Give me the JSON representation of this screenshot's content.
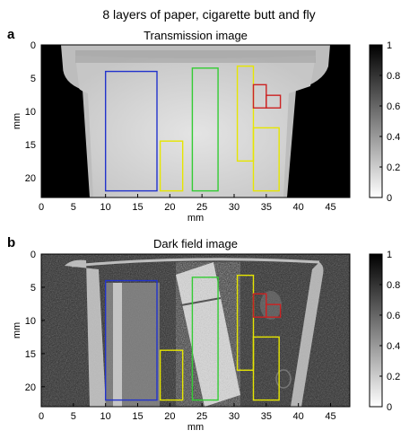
{
  "figure": {
    "title": "8 layers of paper, cigarette butt and fly"
  },
  "panels": [
    {
      "letter": "a",
      "title": "Transmission image",
      "xlabel": "mm",
      "ylabel": "mm",
      "x_ticks": [
        0,
        5,
        10,
        15,
        20,
        25,
        30,
        35,
        40,
        45
      ],
      "y_ticks": [
        5,
        10,
        15,
        20
      ],
      "y_top_tick": 0,
      "xlim": [
        0,
        48
      ],
      "ylim": [
        0,
        23
      ],
      "colorbar": {
        "ticks": [
          "0",
          "0.2",
          "0.4",
          "0.6",
          "0.8",
          "1"
        ],
        "range": [
          0,
          1
        ]
      }
    },
    {
      "letter": "b",
      "title": "Dark field image",
      "xlabel": "mm",
      "ylabel": "mm",
      "x_ticks": [
        0,
        5,
        10,
        15,
        20,
        25,
        30,
        35,
        40,
        45
      ],
      "y_ticks": [
        5,
        10,
        15,
        20
      ],
      "y_top_tick": 0,
      "xlim": [
        0,
        48
      ],
      "ylim": [
        0,
        23
      ],
      "colorbar": {
        "ticks": [
          "0",
          "0.2",
          "0.4",
          "0.6",
          "0.8",
          "1"
        ],
        "range": [
          0,
          1
        ]
      }
    }
  ],
  "regions": [
    {
      "color": "#2233cc",
      "x": [
        10,
        18
      ],
      "y": [
        4,
        22
      ]
    },
    {
      "color": "#e6e600",
      "x": [
        18.5,
        22
      ],
      "y": [
        14.5,
        22
      ]
    },
    {
      "color": "#33cc33",
      "x": [
        23.5,
        27.5
      ],
      "y": [
        3.5,
        22
      ]
    },
    {
      "color": "#e6e600",
      "x": [
        30.5,
        33
      ],
      "y": [
        3.2,
        17.5
      ]
    },
    {
      "color": "#e6e600",
      "x": [
        33,
        37
      ],
      "y": [
        12.5,
        22
      ]
    },
    {
      "color": "#cc2222",
      "x": [
        33,
        35
      ],
      "y": [
        6,
        9.5
      ]
    }
  ]
}
